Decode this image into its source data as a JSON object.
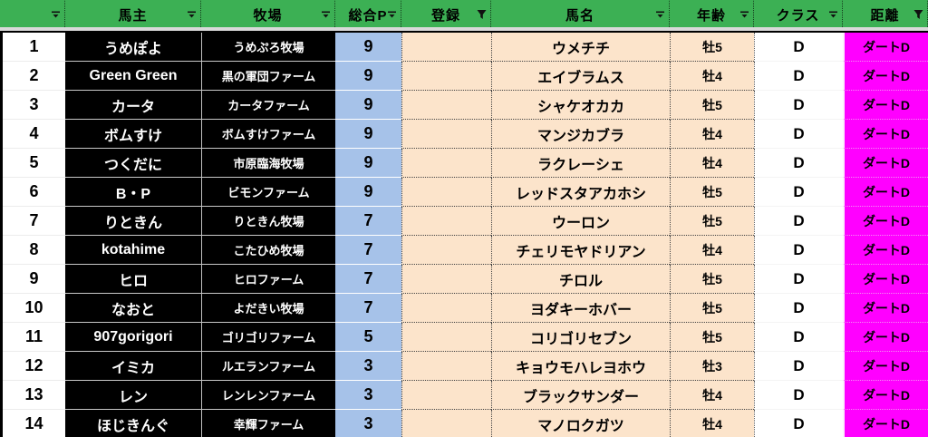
{
  "columns": [
    {
      "key": "rownum",
      "label": "",
      "filter": "dropdown"
    },
    {
      "key": "owner",
      "label": "馬主",
      "filter": "dropdown"
    },
    {
      "key": "farm",
      "label": "牧場",
      "filter": "dropdown"
    },
    {
      "key": "total_points",
      "label": "総合P",
      "filter": "dropdown"
    },
    {
      "key": "registration",
      "label": "登録",
      "filter": "funnel"
    },
    {
      "key": "horse_name",
      "label": "馬名",
      "filter": "dropdown"
    },
    {
      "key": "age",
      "label": "年齢",
      "filter": "dropdown"
    },
    {
      "key": "class",
      "label": "クラス",
      "filter": "dropdown"
    },
    {
      "key": "distance",
      "label": "距離",
      "filter": "funnel"
    }
  ],
  "rows": [
    {
      "num": "1",
      "owner": "うめぽよ",
      "farm": "うめぷろ牧場",
      "total_points": "9",
      "registration": "",
      "horse_name": "ウメチチ",
      "age": "牡5",
      "class": "D",
      "distance": "ダートD"
    },
    {
      "num": "2",
      "owner": "Green Green",
      "farm": "黒の軍団ファーム",
      "total_points": "9",
      "registration": "",
      "horse_name": "エイブラムス",
      "age": "牡4",
      "class": "D",
      "distance": "ダートD"
    },
    {
      "num": "3",
      "owner": "カータ",
      "farm": "カータファーム",
      "total_points": "9",
      "registration": "",
      "horse_name": "シャケオカカ",
      "age": "牡5",
      "class": "D",
      "distance": "ダートD"
    },
    {
      "num": "4",
      "owner": "ボムすけ",
      "farm": "ボムすけファーム",
      "total_points": "9",
      "registration": "",
      "horse_name": "マンジカブラ",
      "age": "牡4",
      "class": "D",
      "distance": "ダートD"
    },
    {
      "num": "5",
      "owner": "つくだに",
      "farm": "市原臨海牧場",
      "total_points": "9",
      "registration": "",
      "horse_name": "ラクレーシェ",
      "age": "牡4",
      "class": "D",
      "distance": "ダートD"
    },
    {
      "num": "6",
      "owner": "B・P",
      "farm": "ビモンファーム",
      "total_points": "9",
      "registration": "",
      "horse_name": "レッドスタアカホシ",
      "age": "牡5",
      "class": "D",
      "distance": "ダートD"
    },
    {
      "num": "7",
      "owner": "りときん",
      "farm": "りときん牧場",
      "total_points": "7",
      "registration": "",
      "horse_name": "ウーロン",
      "age": "牡5",
      "class": "D",
      "distance": "ダートD"
    },
    {
      "num": "8",
      "owner": "kotahime",
      "farm": "こたひめ牧場",
      "total_points": "7",
      "registration": "",
      "horse_name": "チェリモヤドリアン",
      "age": "牡4",
      "class": "D",
      "distance": "ダートD"
    },
    {
      "num": "9",
      "owner": "ヒロ",
      "farm": "ヒロファーム",
      "total_points": "7",
      "registration": "",
      "horse_name": "チロル",
      "age": "牡5",
      "class": "D",
      "distance": "ダートD"
    },
    {
      "num": "10",
      "owner": "なおと",
      "farm": "よだきい牧場",
      "total_points": "7",
      "registration": "",
      "horse_name": "ヨダキーホバー",
      "age": "牡5",
      "class": "D",
      "distance": "ダートD"
    },
    {
      "num": "11",
      "owner": "907gorigori",
      "farm": "ゴリゴリファーム",
      "total_points": "5",
      "registration": "",
      "horse_name": "コリゴリセブン",
      "age": "牡5",
      "class": "D",
      "distance": "ダートD"
    },
    {
      "num": "12",
      "owner": "イミカ",
      "farm": "ルエランファーム",
      "total_points": "3",
      "registration": "",
      "horse_name": "キョウモハレヨホウ",
      "age": "牡3",
      "class": "D",
      "distance": "ダートD"
    },
    {
      "num": "13",
      "owner": "レン",
      "farm": "レンレンファーム",
      "total_points": "3",
      "registration": "",
      "horse_name": "ブラックサンダー",
      "age": "牡4",
      "class": "D",
      "distance": "ダートD"
    },
    {
      "num": "14",
      "owner": "ほじきんぐ",
      "farm": "幸輝ファーム",
      "total_points": "3",
      "registration": "",
      "horse_name": "マノロクガツ",
      "age": "牡4",
      "class": "D",
      "distance": "ダートD"
    }
  ],
  "colors": {
    "header_green": "#3CB054",
    "owner_farm_cell_black": "#000000",
    "points_blue": "#A6C2E9",
    "data_peach": "#FCE4CB",
    "distance_magenta": "#FF00FF"
  }
}
